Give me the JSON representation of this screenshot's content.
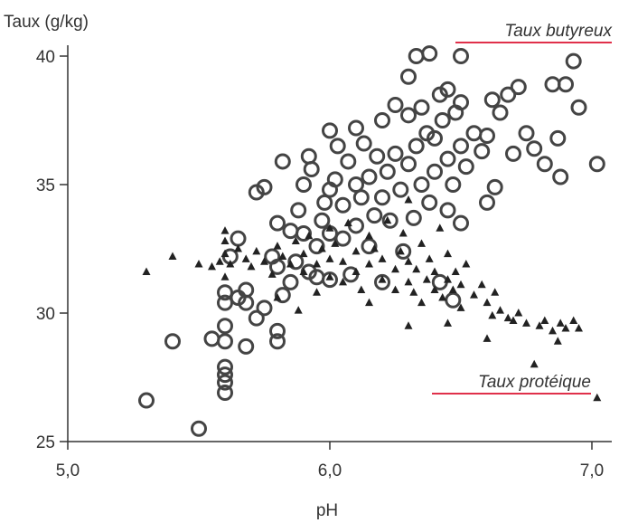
{
  "chart_data": {
    "type": "scatter",
    "ylabel": "Taux (g/kg)",
    "xlabel": "pH",
    "xlim": [
      5.0,
      7.05
    ],
    "ylim": [
      25,
      40.2
    ],
    "x_ticks": [
      "5,0",
      "6,0",
      "7,0"
    ],
    "x_tick_values": [
      5.0,
      6.0,
      7.0
    ],
    "y_ticks": [
      "25",
      "30",
      "35",
      "40"
    ],
    "y_tick_values": [
      25,
      30,
      35,
      40
    ],
    "grid": false,
    "series": [
      {
        "name": "Taux butyreux",
        "marker": "circle",
        "color": "#444444",
        "points": [
          [
            5.3,
            26.6
          ],
          [
            5.4,
            28.9
          ],
          [
            5.5,
            25.5
          ],
          [
            5.55,
            29.0
          ],
          [
            5.6,
            26.9
          ],
          [
            5.6,
            27.3
          ],
          [
            5.6,
            27.6
          ],
          [
            5.6,
            27.9
          ],
          [
            5.6,
            28.9
          ],
          [
            5.6,
            29.5
          ],
          [
            5.6,
            30.4
          ],
          [
            5.6,
            30.8
          ],
          [
            5.62,
            32.2
          ],
          [
            5.65,
            30.6
          ],
          [
            5.65,
            32.9
          ],
          [
            5.68,
            28.7
          ],
          [
            5.68,
            30.4
          ],
          [
            5.68,
            30.9
          ],
          [
            5.72,
            29.8
          ],
          [
            5.72,
            34.7
          ],
          [
            5.75,
            30.2
          ],
          [
            5.75,
            34.9
          ],
          [
            5.78,
            32.2
          ],
          [
            5.8,
            28.9
          ],
          [
            5.8,
            29.3
          ],
          [
            5.8,
            31.8
          ],
          [
            5.8,
            33.5
          ],
          [
            5.82,
            30.7
          ],
          [
            5.82,
            35.9
          ],
          [
            5.85,
            31.2
          ],
          [
            5.85,
            33.2
          ],
          [
            5.87,
            32.0
          ],
          [
            5.88,
            34.0
          ],
          [
            5.9,
            33.1
          ],
          [
            5.9,
            35.0
          ],
          [
            5.92,
            31.6
          ],
          [
            5.92,
            36.1
          ],
          [
            5.93,
            35.6
          ],
          [
            5.95,
            31.4
          ],
          [
            5.95,
            32.6
          ],
          [
            5.97,
            33.6
          ],
          [
            5.98,
            34.3
          ],
          [
            6.0,
            31.3
          ],
          [
            6.0,
            33.1
          ],
          [
            6.0,
            34.8
          ],
          [
            6.0,
            37.1
          ],
          [
            6.02,
            35.2
          ],
          [
            6.03,
            36.5
          ],
          [
            6.05,
            32.9
          ],
          [
            6.05,
            34.2
          ],
          [
            6.07,
            35.9
          ],
          [
            6.08,
            31.5
          ],
          [
            6.1,
            33.4
          ],
          [
            6.1,
            35.0
          ],
          [
            6.1,
            37.2
          ],
          [
            6.12,
            34.5
          ],
          [
            6.13,
            36.6
          ],
          [
            6.15,
            32.6
          ],
          [
            6.15,
            35.3
          ],
          [
            6.17,
            33.8
          ],
          [
            6.18,
            36.1
          ],
          [
            6.2,
            31.2
          ],
          [
            6.2,
            34.5
          ],
          [
            6.2,
            37.5
          ],
          [
            6.22,
            35.5
          ],
          [
            6.23,
            33.6
          ],
          [
            6.25,
            36.2
          ],
          [
            6.25,
            38.1
          ],
          [
            6.27,
            34.8
          ],
          [
            6.28,
            32.4
          ],
          [
            6.3,
            35.8
          ],
          [
            6.3,
            37.7
          ],
          [
            6.3,
            39.2
          ],
          [
            6.32,
            33.7
          ],
          [
            6.33,
            36.5
          ],
          [
            6.33,
            40.0
          ],
          [
            6.35,
            35.0
          ],
          [
            6.35,
            38.0
          ],
          [
            6.37,
            37.0
          ],
          [
            6.38,
            34.3
          ],
          [
            6.38,
            40.1
          ],
          [
            6.4,
            35.5
          ],
          [
            6.4,
            36.8
          ],
          [
            6.42,
            31.2
          ],
          [
            6.42,
            38.5
          ],
          [
            6.43,
            37.5
          ],
          [
            6.45,
            34.0
          ],
          [
            6.45,
            36.0
          ],
          [
            6.45,
            38.7
          ],
          [
            6.47,
            30.5
          ],
          [
            6.47,
            35.0
          ],
          [
            6.48,
            37.8
          ],
          [
            6.5,
            33.5
          ],
          [
            6.5,
            36.5
          ],
          [
            6.5,
            38.2
          ],
          [
            6.5,
            40.0
          ],
          [
            6.52,
            35.7
          ],
          [
            6.55,
            37.0
          ],
          [
            6.58,
            36.3
          ],
          [
            6.6,
            34.3
          ],
          [
            6.6,
            36.9
          ],
          [
            6.62,
            38.3
          ],
          [
            6.63,
            34.9
          ],
          [
            6.65,
            37.8
          ],
          [
            6.68,
            38.5
          ],
          [
            6.7,
            36.2
          ],
          [
            6.72,
            38.8
          ],
          [
            6.75,
            37.0
          ],
          [
            6.78,
            36.4
          ],
          [
            6.82,
            35.8
          ],
          [
            6.85,
            38.9
          ],
          [
            6.87,
            36.8
          ],
          [
            6.88,
            35.3
          ],
          [
            6.9,
            38.9
          ],
          [
            6.93,
            39.8
          ],
          [
            6.95,
            38.0
          ],
          [
            7.02,
            35.8
          ]
        ]
      },
      {
        "name": "Taux protéique",
        "marker": "triangle",
        "color": "#222222",
        "points": [
          [
            5.3,
            31.6
          ],
          [
            5.4,
            32.2
          ],
          [
            5.5,
            31.9
          ],
          [
            5.55,
            31.8
          ],
          [
            5.58,
            32.0
          ],
          [
            5.6,
            31.4
          ],
          [
            5.6,
            32.3
          ],
          [
            5.6,
            32.8
          ],
          [
            5.6,
            33.2
          ],
          [
            5.62,
            31.9
          ],
          [
            5.65,
            32.5
          ],
          [
            5.68,
            32.1
          ],
          [
            5.7,
            31.8
          ],
          [
            5.72,
            32.4
          ],
          [
            5.75,
            32.0
          ],
          [
            5.78,
            31.5
          ],
          [
            5.8,
            32.6
          ],
          [
            5.8,
            30.6
          ],
          [
            5.82,
            32.2
          ],
          [
            5.85,
            31.9
          ],
          [
            5.87,
            32.8
          ],
          [
            5.9,
            31.6
          ],
          [
            5.9,
            32.3
          ],
          [
            5.92,
            33.0
          ],
          [
            5.95,
            30.8
          ],
          [
            5.95,
            31.9
          ],
          [
            5.97,
            32.5
          ],
          [
            6.0,
            31.4
          ],
          [
            6.0,
            32.1
          ],
          [
            6.0,
            33.3
          ],
          [
            6.02,
            32.7
          ],
          [
            6.05,
            31.2
          ],
          [
            6.05,
            32.0
          ],
          [
            6.07,
            33.5
          ],
          [
            6.1,
            31.6
          ],
          [
            6.1,
            32.4
          ],
          [
            6.12,
            30.9
          ],
          [
            6.15,
            31.9
          ],
          [
            6.15,
            33.0
          ],
          [
            6.17,
            32.5
          ],
          [
            6.2,
            31.3
          ],
          [
            6.2,
            32.1
          ],
          [
            6.22,
            33.6
          ],
          [
            6.25,
            31.7
          ],
          [
            6.25,
            30.9
          ],
          [
            6.27,
            32.4
          ],
          [
            6.28,
            33.1
          ],
          [
            6.3,
            31.2
          ],
          [
            6.3,
            32.0
          ],
          [
            6.3,
            34.4
          ],
          [
            6.32,
            30.8
          ],
          [
            6.33,
            31.7
          ],
          [
            6.35,
            32.7
          ],
          [
            6.35,
            30.4
          ],
          [
            6.37,
            31.3
          ],
          [
            6.38,
            32.1
          ],
          [
            6.4,
            30.9
          ],
          [
            6.4,
            31.6
          ],
          [
            6.42,
            33.3
          ],
          [
            6.43,
            30.6
          ],
          [
            6.45,
            31.3
          ],
          [
            6.45,
            32.3
          ],
          [
            6.47,
            30.9
          ],
          [
            6.48,
            31.6
          ],
          [
            6.5,
            30.2
          ],
          [
            6.5,
            31.1
          ],
          [
            6.52,
            31.9
          ],
          [
            6.55,
            30.7
          ],
          [
            6.58,
            31.1
          ],
          [
            6.6,
            30.4
          ],
          [
            6.62,
            29.9
          ],
          [
            6.63,
            30.8
          ],
          [
            6.65,
            30.1
          ],
          [
            6.68,
            29.8
          ],
          [
            6.7,
            29.7
          ],
          [
            6.72,
            30.0
          ],
          [
            6.75,
            29.6
          ],
          [
            6.78,
            28.0
          ],
          [
            6.8,
            29.5
          ],
          [
            6.82,
            29.7
          ],
          [
            6.85,
            29.3
          ],
          [
            6.87,
            28.9
          ],
          [
            6.88,
            29.6
          ],
          [
            6.9,
            29.4
          ],
          [
            6.93,
            29.7
          ],
          [
            6.95,
            29.4
          ],
          [
            7.02,
            26.7
          ],
          [
            6.6,
            29.0
          ],
          [
            6.45,
            29.6
          ],
          [
            6.3,
            29.5
          ],
          [
            5.88,
            30.1
          ],
          [
            6.15,
            30.4
          ]
        ]
      }
    ]
  }
}
